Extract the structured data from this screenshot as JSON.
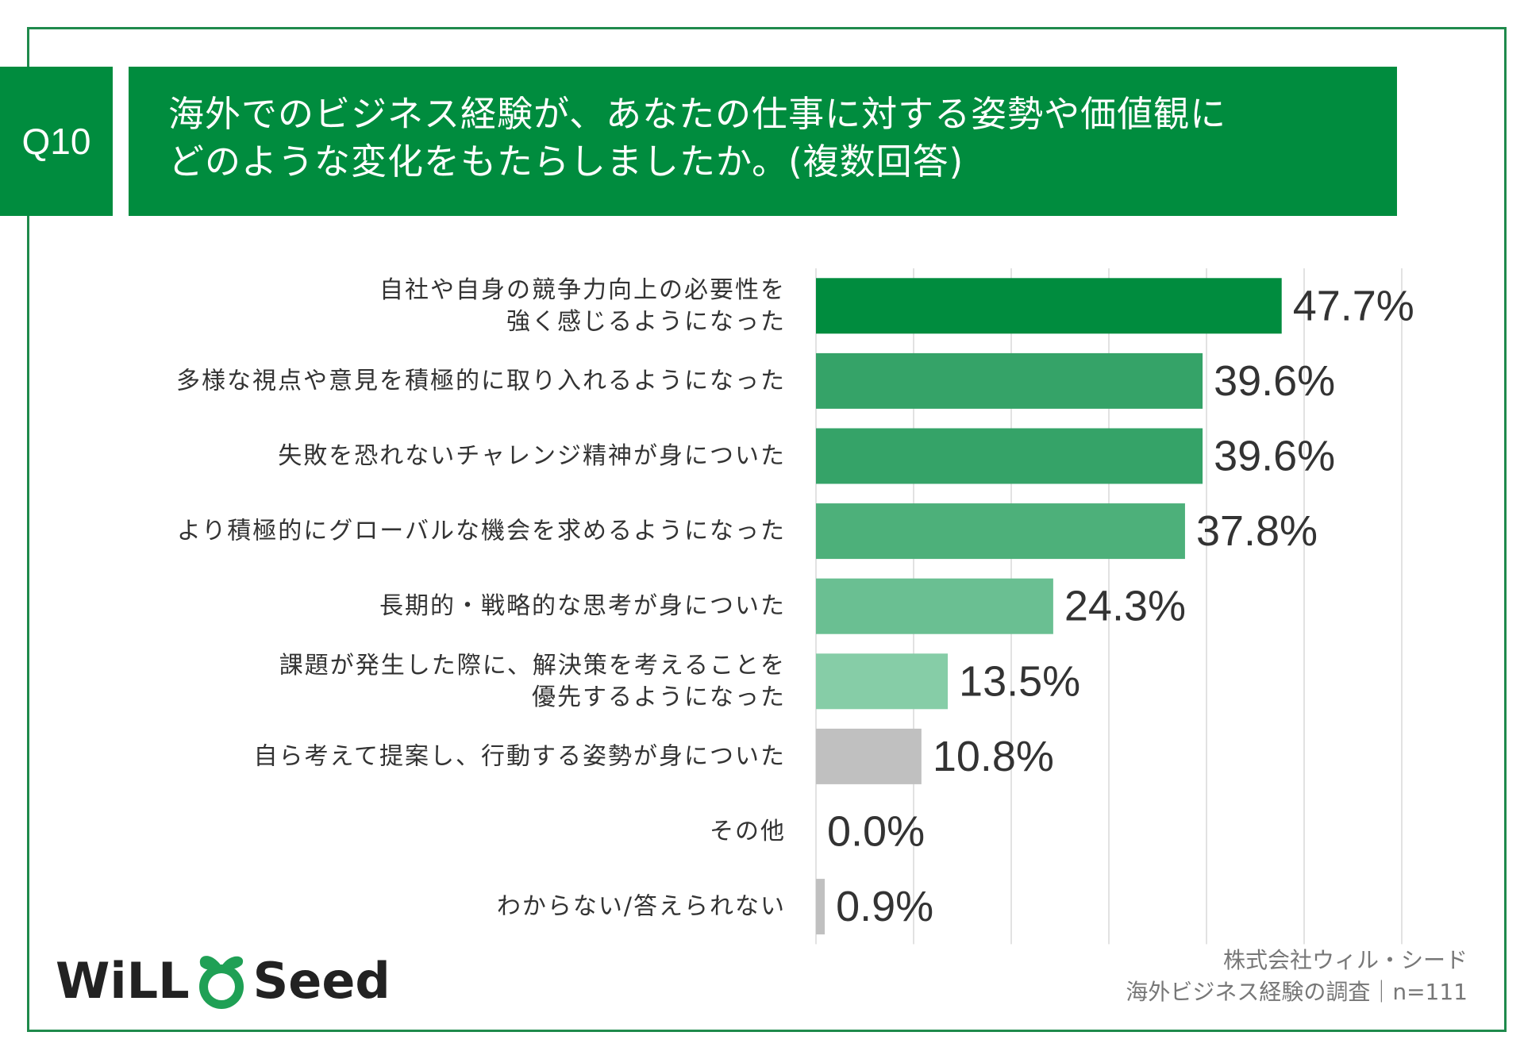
{
  "question": {
    "number": "Q10",
    "line1": "海外でのビジネス経験が、あなたの仕事に対する姿勢や価値観に",
    "line2": "どのような変化をもたらしましたか。(複数回答)"
  },
  "chart_data": {
    "type": "bar",
    "orientation": "horizontal",
    "title": "海外でのビジネス経験が、あなたの仕事に対する姿勢や価値観にどのような変化をもたらしましたか。(複数回答)",
    "xlim": [
      0,
      60
    ],
    "grid": true,
    "unit": "%",
    "categories": [
      [
        "自社や自身の競争力向上の必要性を",
        "強く感じるようになった"
      ],
      [
        "多様な視点や意見を積極的に取り入れるようになった"
      ],
      [
        "失敗を恐れないチャレンジ精神が身についた"
      ],
      [
        "より積極的にグローバルな機会を求めるようになった"
      ],
      [
        "長期的・戦略的な思考が身についた"
      ],
      [
        "課題が発生した際に、解決策を考えることを",
        "優先するようになった"
      ],
      [
        "自ら考えて提案し、行動する姿勢が身についた"
      ],
      [
        "その他"
      ],
      [
        "わからない/答えられない"
      ]
    ],
    "values": [
      47.7,
      39.6,
      39.6,
      37.8,
      24.3,
      13.5,
      10.8,
      0.0,
      0.9
    ],
    "value_labels": [
      "47.7%",
      "39.6%",
      "39.6%",
      "37.8%",
      "24.3%",
      "13.5%",
      "10.8%",
      "0.0%",
      "0.9%"
    ],
    "colors": [
      "#008c3e",
      "#35a368",
      "#35a368",
      "#4db07a",
      "#6abf92",
      "#86cda7",
      "#c0c0c0",
      "#c0c0c0",
      "#c0c0c0"
    ]
  },
  "credit": {
    "line1": "株式会社ウィル・シード",
    "line2": "海外ビジネス経験の調査｜n=111"
  },
  "logo": {
    "left": "WiLL",
    "right": "Seed"
  }
}
